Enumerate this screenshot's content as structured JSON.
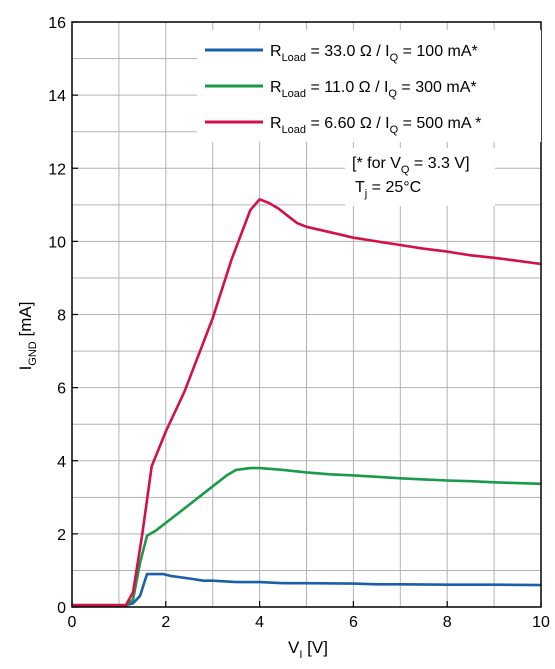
{
  "chart_data": {
    "type": "line",
    "xlabel": {
      "main": "V",
      "sub": "I",
      "unit": " [V]"
    },
    "ylabel": {
      "main": "I",
      "sub": "GND",
      "unit": " [mA]"
    },
    "xlim": [
      0,
      10
    ],
    "ylim": [
      0,
      16
    ],
    "xticks": [
      0,
      2,
      4,
      6,
      8,
      10
    ],
    "yticks": [
      0,
      2,
      4,
      6,
      8,
      10,
      12,
      14,
      16
    ],
    "grid": {
      "x_minor_step": 1,
      "y_minor_step": 1
    },
    "legend_position": "top-right",
    "series": [
      {
        "legend": {
          "pre": "R",
          "sub": "Load",
          "mid": " = 33.0 Ω / I",
          "sub2": "Q",
          "post": " = 100 mA*"
        },
        "color": "#1a5fa8",
        "x": [
          0,
          1.15,
          1.3,
          1.45,
          1.6,
          1.95,
          2.1,
          2.5,
          2.8,
          3.0,
          3.5,
          4.0,
          4.5,
          5.0,
          6.0,
          6.5,
          7.0,
          8.0,
          9.0,
          10.0
        ],
        "y": [
          0.05,
          0.05,
          0.1,
          0.3,
          0.9,
          0.9,
          0.85,
          0.78,
          0.72,
          0.72,
          0.68,
          0.68,
          0.65,
          0.65,
          0.64,
          0.62,
          0.62,
          0.61,
          0.61,
          0.6
        ]
      },
      {
        "legend": {
          "pre": "R",
          "sub": "Load",
          "mid": " = 11.0 Ω / I",
          "sub2": "Q",
          "post": " = 300 mA*"
        },
        "color": "#1a9a4a",
        "x": [
          0,
          1.15,
          1.3,
          1.45,
          1.6,
          1.8,
          2.0,
          2.2,
          2.5,
          2.8,
          3.0,
          3.3,
          3.5,
          3.8,
          4.0,
          4.5,
          5.0,
          5.5,
          6.0,
          6.5,
          7.0,
          7.5,
          8.0,
          8.5,
          9.0,
          9.5,
          10.0
        ],
        "y": [
          0.05,
          0.05,
          0.2,
          1.2,
          1.95,
          2.1,
          2.3,
          2.5,
          2.8,
          3.1,
          3.3,
          3.6,
          3.75,
          3.8,
          3.8,
          3.75,
          3.68,
          3.63,
          3.6,
          3.56,
          3.52,
          3.49,
          3.46,
          3.44,
          3.41,
          3.39,
          3.37
        ]
      },
      {
        "legend": {
          "pre": "R",
          "sub": "Load",
          "mid": " = 6.60 Ω / I",
          "sub2": "Q",
          "post": " = 500 mA *"
        },
        "color": "#d4104a",
        "x": [
          0,
          1.15,
          1.3,
          1.5,
          1.7,
          2.0,
          2.4,
          3.0,
          3.4,
          3.8,
          4.0,
          4.2,
          4.4,
          4.6,
          4.8,
          5.0,
          5.5,
          6.0,
          6.5,
          7.0,
          7.5,
          8.0,
          8.5,
          9.0,
          9.5,
          10.0
        ],
        "y": [
          0.05,
          0.05,
          0.4,
          2.0,
          3.85,
          4.8,
          5.9,
          7.9,
          9.5,
          10.85,
          11.15,
          11.05,
          10.9,
          10.7,
          10.5,
          10.4,
          10.25,
          10.1,
          10.0,
          9.9,
          9.8,
          9.72,
          9.62,
          9.55,
          9.47,
          9.38
        ]
      }
    ],
    "annotation": {
      "line1": {
        "pre": "[* for V",
        "sub": "Q",
        "post": " = 3.3 V]"
      },
      "line2": {
        "pre": "T",
        "sub": "j",
        "post": " = 25°C"
      }
    }
  }
}
